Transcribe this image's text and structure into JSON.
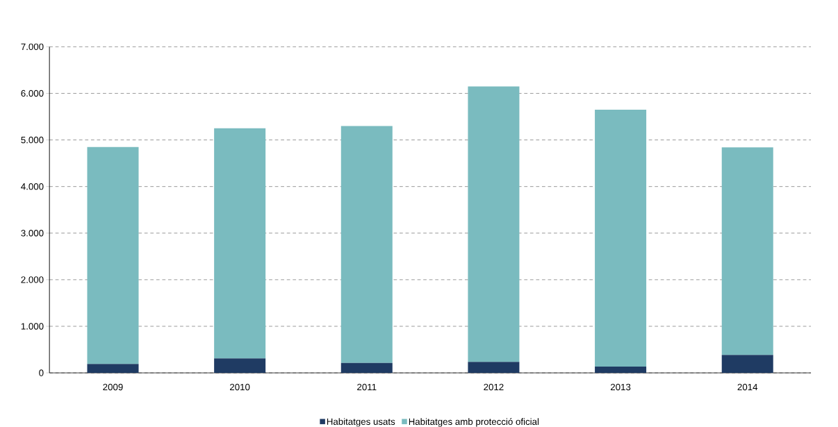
{
  "chart_data": {
    "type": "bar",
    "stacked": true,
    "categories": [
      "2009",
      "2010",
      "2011",
      "2012",
      "2013",
      "2014"
    ],
    "series": [
      {
        "name": "Habitatges usats",
        "color": "#1f3b63",
        "values": [
          190,
          310,
          215,
          235,
          135,
          385
        ]
      },
      {
        "name": "Habitatges amb protecció oficial",
        "color": "#7abbbf",
        "values": [
          4660,
          4940,
          5085,
          5915,
          5515,
          4455
        ]
      }
    ],
    "ylim": [
      0,
      7000
    ],
    "yticks": [
      {
        "value": 0,
        "label": "0"
      },
      {
        "value": 1000,
        "label": "1.000"
      },
      {
        "value": 2000,
        "label": "2.000"
      },
      {
        "value": 3000,
        "label": "3.000"
      },
      {
        "value": 4000,
        "label": "4.000"
      },
      {
        "value": 5000,
        "label": "5.000"
      },
      {
        "value": 6000,
        "label": "6.000"
      },
      {
        "value": 7000,
        "label": "7.000"
      }
    ],
    "grid": "y",
    "legend": "bottom"
  }
}
